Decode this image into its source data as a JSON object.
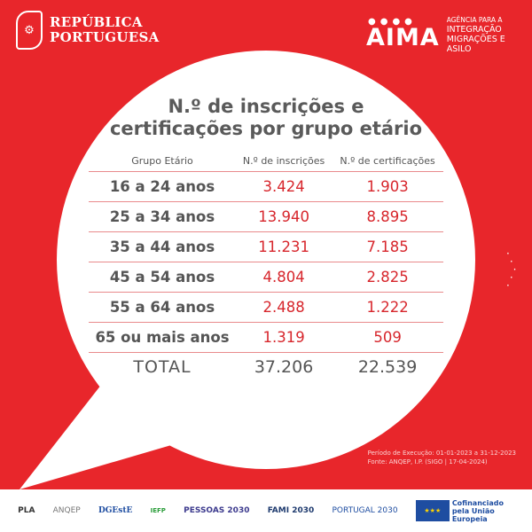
{
  "header": {
    "gov_line1": "REPÚBLICA",
    "gov_line2": "PORTUGUESA",
    "aima_logo": "AIMA",
    "aima_line1": "AGÊNCIA PARA A",
    "aima_line2": "INTEGRAÇÃO",
    "aima_line3": "MIGRAÇÕES E ASILO"
  },
  "title_line1": "N.º de inscrições e",
  "title_line2": "certificações por grupo etário",
  "table": {
    "headers": [
      "Grupo Etário",
      "N.º de inscrições",
      "N.º de certificações"
    ],
    "rows": [
      [
        "16 a 24 anos",
        "3.424",
        "1.903"
      ],
      [
        "25 a 34 anos",
        "13.940",
        "8.895"
      ],
      [
        "35 a 44 anos",
        "11.231",
        "7.185"
      ],
      [
        "45 a 54 anos",
        "4.804",
        "2.825"
      ],
      [
        "55 a 64 anos",
        "2.488",
        "1.222"
      ],
      [
        "65 ou mais anos",
        "1.319",
        "509"
      ]
    ],
    "total": [
      "TOTAL",
      "37.206",
      "22.539"
    ]
  },
  "note_line1": "Período de Execução: 01-01-2023 a 31-12-2023",
  "note_line2": "Fonte: ANQEP, I.P. (SIGO | 17-04-2024)",
  "footer": {
    "logos": [
      "PLA",
      "ANQEP",
      "DGEstE",
      "IEFP",
      "PESSOAS 2030",
      "FAMI 2030",
      "PORTUGAL 2030"
    ],
    "eu_text": "Cofinanciado pela União Europeia"
  },
  "colors": {
    "brand_red": "#e8262b",
    "value_red": "#d7262c"
  }
}
